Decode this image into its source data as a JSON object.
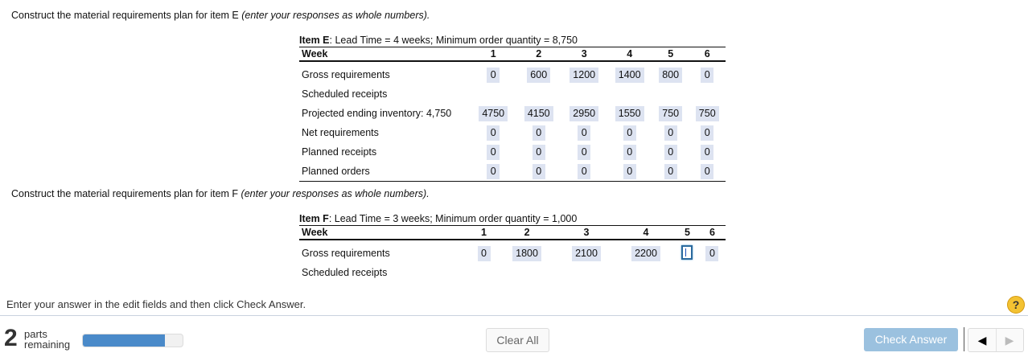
{
  "instructions": {
    "item_e": {
      "main": "Construct the material requirements plan for item E ",
      "italic": "(enter your responses as whole numbers)."
    },
    "item_f": {
      "main": "Construct the material requirements plan for item F ",
      "italic": "(enter your responses as whole numbers)."
    }
  },
  "item_e": {
    "caption_bold": "Item E",
    "caption_rest": ": Lead Time = 4 weeks; Minimum order quantity = 8,750",
    "week_label": "Week",
    "weeks": [
      "1",
      "2",
      "3",
      "4",
      "5",
      "6"
    ],
    "rows": [
      {
        "label": "Gross requirements",
        "values": [
          "0",
          "600",
          "1200",
          "1400",
          "800",
          "0"
        ]
      },
      {
        "label": "Scheduled receipts",
        "values": [
          "",
          "",
          "",
          "",
          "",
          ""
        ]
      },
      {
        "label": "Projected ending inventory: 4,750",
        "values": [
          "4750",
          "4150",
          "2950",
          "1550",
          "750",
          "750"
        ]
      },
      {
        "label": "Net requirements",
        "values": [
          "0",
          "0",
          "0",
          "0",
          "0",
          "0"
        ]
      },
      {
        "label": "Planned receipts",
        "values": [
          "0",
          "0",
          "0",
          "0",
          "0",
          "0"
        ]
      },
      {
        "label": "Planned orders",
        "values": [
          "0",
          "0",
          "0",
          "0",
          "0",
          "0"
        ]
      }
    ]
  },
  "item_f": {
    "caption_bold": "Item F",
    "caption_rest": ": Lead Time = 3 weeks; Minimum order quantity = 1,000",
    "week_label": "Week",
    "weeks": [
      "1",
      "2",
      "3",
      "4",
      "5",
      "6"
    ],
    "rows": [
      {
        "label": "Gross requirements",
        "values": [
          "0",
          "1800",
          "2100",
          "2200",
          "",
          "0"
        ]
      },
      {
        "label": "Scheduled receipts",
        "values": [
          "",
          "",
          "",
          "",
          "",
          ""
        ]
      }
    ]
  },
  "footer": {
    "instruction": "Enter your answer in the edit fields and then click Check Answer.",
    "help_label": "?",
    "parts_count": "2",
    "parts_line1": "parts",
    "parts_line2": "remaining",
    "progress_percent": 82,
    "clear_all_label": "Clear All",
    "check_answer_label": "Check Answer",
    "prev_label": "◀",
    "next_label": "▶"
  },
  "colors": {
    "cell_bg": "#dde3f1",
    "progress": "#4a8ac9",
    "check_button": "#9bc1df",
    "help": "#f3c232"
  }
}
